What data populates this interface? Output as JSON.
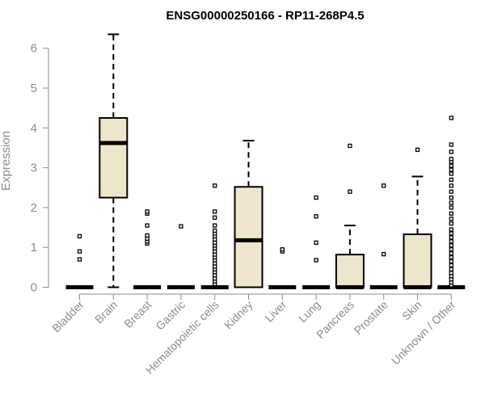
{
  "chart_data": {
    "type": "box",
    "title": "ENSG00000250166 - RP11-268P4.5",
    "xlabel": "",
    "ylabel": "Expression",
    "ylim": [
      0,
      6.5
    ],
    "yticks": [
      0,
      1,
      2,
      3,
      4,
      5,
      6
    ],
    "box_fill": "#ede6cc",
    "categories": [
      "Bladder",
      "Brain",
      "Breast",
      "Gastric",
      "Hematopoietic cells",
      "Kidney",
      "Liver",
      "Lung",
      "Pancreas",
      "Prostate",
      "Skin",
      "Unknown / Other"
    ],
    "boxes": [
      {
        "category": "Bladder",
        "q1": 0,
        "median": 0,
        "q3": 0,
        "whisker_low": 0,
        "whisker_high": 0,
        "outliers": [
          0.7,
          0.9,
          1.28
        ]
      },
      {
        "category": "Brain",
        "q1": 2.25,
        "median": 3.62,
        "q3": 4.25,
        "whisker_low": 0,
        "whisker_high": 6.35,
        "outliers": []
      },
      {
        "category": "Breast",
        "q1": 0,
        "median": 0,
        "q3": 0,
        "whisker_low": 0,
        "whisker_high": 0,
        "outliers": [
          1.1,
          1.15,
          1.22,
          1.3,
          1.55,
          1.85,
          1.9
        ]
      },
      {
        "category": "Gastric",
        "q1": 0,
        "median": 0,
        "q3": 0,
        "whisker_low": 0,
        "whisker_high": 0,
        "outliers": [
          1.53
        ]
      },
      {
        "category": "Hematopoietic cells",
        "q1": 0,
        "median": 0,
        "q3": 0,
        "whisker_low": 0,
        "whisker_high": 0,
        "outliers": [
          0.08,
          0.15,
          0.22,
          0.3,
          0.38,
          0.45,
          0.52,
          0.6,
          0.68,
          0.75,
          0.82,
          0.9,
          0.98,
          1.05,
          1.12,
          1.2,
          1.28,
          1.35,
          1.42,
          1.55,
          1.75,
          1.9,
          2.55
        ]
      },
      {
        "category": "Kidney",
        "q1": 0,
        "median": 1.18,
        "q3": 2.52,
        "whisker_low": 0,
        "whisker_high": 3.68,
        "outliers": []
      },
      {
        "category": "Liver",
        "q1": 0,
        "median": 0,
        "q3": 0,
        "whisker_low": 0,
        "whisker_high": 0,
        "outliers": [
          0.9,
          0.95
        ]
      },
      {
        "category": "Lung",
        "q1": 0,
        "median": 0,
        "q3": 0,
        "whisker_low": 0,
        "whisker_high": 0,
        "outliers": [
          0.68,
          1.12,
          1.78,
          2.25
        ]
      },
      {
        "category": "Pancreas",
        "q1": 0,
        "median": 0,
        "q3": 0.82,
        "whisker_low": 0,
        "whisker_high": 1.55,
        "outliers": [
          2.4,
          3.55
        ]
      },
      {
        "category": "Prostate",
        "q1": 0,
        "median": 0,
        "q3": 0,
        "whisker_low": 0,
        "whisker_high": 0,
        "outliers": [
          0.83,
          2.55
        ]
      },
      {
        "category": "Skin",
        "q1": 0,
        "median": 0,
        "q3": 1.33,
        "whisker_low": 0,
        "whisker_high": 2.78,
        "outliers": [
          3.45
        ]
      },
      {
        "category": "Unknown / Other",
        "q1": 0,
        "median": 0,
        "q3": 0,
        "whisker_low": 0,
        "whisker_high": 0,
        "outliers": [
          0.05,
          0.12,
          0.2,
          0.28,
          0.36,
          0.45,
          0.55,
          0.65,
          0.75,
          0.85,
          0.95,
          1.05,
          1.15,
          1.25,
          1.35,
          1.45,
          1.6,
          1.72,
          1.85,
          2.0,
          2.12,
          2.25,
          2.4,
          2.55,
          2.7,
          2.85,
          2.95,
          3.05,
          3.15,
          3.22,
          3.4,
          3.58,
          4.25
        ]
      }
    ]
  }
}
